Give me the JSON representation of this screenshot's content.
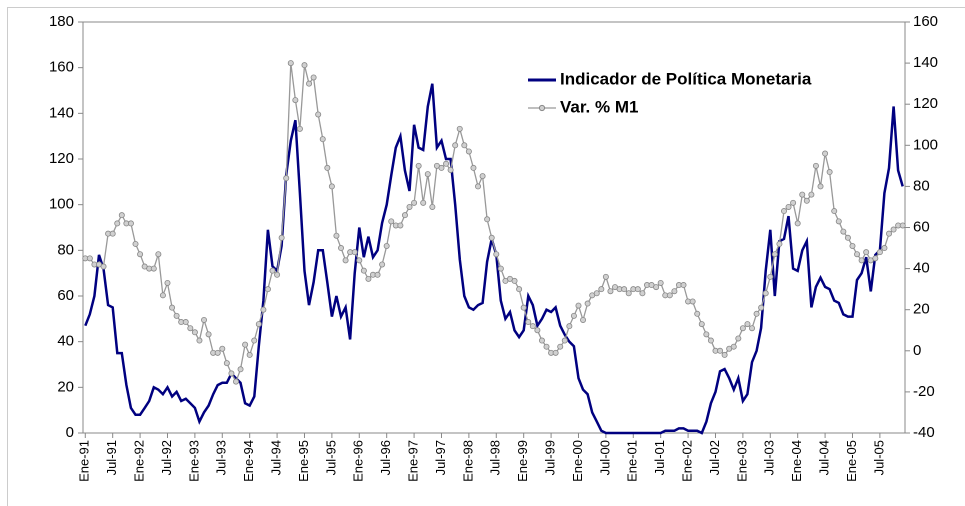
{
  "chart_data": {
    "type": "line",
    "categories": [
      "Ene-91",
      null,
      null,
      null,
      null,
      null,
      "Jul-91",
      null,
      null,
      null,
      null,
      null,
      "Ene-92",
      null,
      null,
      null,
      null,
      null,
      "Jul-92",
      null,
      null,
      null,
      null,
      null,
      "Ene-93",
      null,
      null,
      null,
      null,
      null,
      "Jul-93",
      null,
      null,
      null,
      null,
      null,
      "Ene-94",
      null,
      null,
      null,
      null,
      null,
      "Jul-94",
      null,
      null,
      null,
      null,
      null,
      "Ene-95",
      null,
      null,
      null,
      null,
      null,
      "Jul-95",
      null,
      null,
      null,
      null,
      null,
      "Ene-96",
      null,
      null,
      null,
      null,
      null,
      "Jul-96",
      null,
      null,
      null,
      null,
      null,
      "Ene-97",
      null,
      null,
      null,
      null,
      null,
      "Jul-97",
      null,
      null,
      null,
      null,
      null,
      "Ene-98",
      null,
      null,
      null,
      null,
      null,
      "Jul-98",
      null,
      null,
      null,
      null,
      null,
      "Ene-99",
      null,
      null,
      null,
      null,
      null,
      "Jul-99",
      null,
      null,
      null,
      null,
      null,
      "Ene-00",
      null,
      null,
      null,
      null,
      null,
      "Jul-00",
      null,
      null,
      null,
      null,
      null,
      "Ene-01",
      null,
      null,
      null,
      null,
      null,
      "Jul-01",
      null,
      null,
      null,
      null,
      null,
      "Ene-02",
      null,
      null,
      null,
      null,
      null,
      "Jul-02",
      null,
      null,
      null,
      null,
      null,
      "Ene-03",
      null,
      null,
      null,
      null,
      null,
      "Jul-03",
      null,
      null,
      null,
      null,
      null,
      "Ene-04",
      null,
      null,
      null,
      null,
      null,
      "Jul-04",
      null,
      null,
      null,
      null,
      null,
      "Ene-05",
      null,
      null,
      null,
      null,
      null,
      "Jul-05",
      null,
      null,
      null,
      null,
      null
    ],
    "series": [
      {
        "name": "Indicador de Política Monetaria",
        "color": "#000080",
        "axis": "y",
        "values": [
          47,
          52,
          60,
          78,
          72,
          56,
          55,
          35,
          35,
          21,
          11,
          8,
          8,
          11,
          14,
          20,
          19,
          17,
          20,
          16,
          18,
          14,
          15,
          13,
          11,
          5,
          9,
          12,
          17,
          21,
          22,
          22,
          26,
          24,
          22,
          13,
          12,
          16,
          38,
          58,
          89,
          73,
          71,
          82,
          113,
          128,
          137,
          105,
          71,
          56,
          66,
          80,
          80,
          66,
          51,
          60,
          51,
          55,
          41,
          70,
          90,
          77,
          86,
          77,
          80,
          92,
          100,
          113,
          125,
          130,
          115,
          106,
          135,
          125,
          124,
          143,
          153,
          125,
          128,
          120,
          120,
          100,
          76,
          60,
          55,
          54,
          56,
          57,
          75,
          85,
          78,
          58,
          50,
          53,
          45,
          42,
          45,
          60,
          56,
          47,
          50,
          54,
          53,
          55,
          47,
          43,
          40,
          38,
          24,
          19,
          17,
          9,
          5,
          1,
          0,
          0,
          0,
          0,
          0,
          0,
          0,
          0,
          0,
          0,
          0,
          0,
          0,
          1,
          1,
          1,
          2,
          2,
          1,
          1,
          1,
          0,
          5,
          13,
          18,
          27,
          28,
          24,
          19,
          24,
          14,
          17,
          31,
          36,
          46,
          71,
          89,
          60,
          84,
          85,
          95,
          72,
          71,
          80,
          84,
          55,
          64,
          68,
          64,
          63,
          58,
          57,
          52,
          51,
          51,
          67,
          70,
          77,
          62,
          78,
          80,
          105,
          116,
          143,
          115,
          108
        ]
      },
      {
        "name": "Var. % M1",
        "color": "#999999",
        "axis": "y2",
        "values": [
          45,
          45,
          42,
          42,
          41,
          57,
          57,
          62,
          66,
          62,
          62,
          52,
          47,
          41,
          40,
          40,
          47,
          27,
          33,
          21,
          17,
          14,
          14,
          11,
          9,
          5,
          15,
          8,
          -1,
          -1,
          1,
          -6,
          -11,
          -15,
          -9,
          3,
          -2,
          5,
          13,
          20,
          30,
          39,
          37,
          55,
          84,
          140,
          122,
          108,
          139,
          130,
          133,
          115,
          103,
          89,
          80,
          56,
          50,
          44,
          48,
          48,
          44,
          39,
          35,
          37,
          37,
          42,
          51,
          63,
          61,
          61,
          66,
          70,
          72,
          90,
          72,
          86,
          70,
          90,
          89,
          91,
          88,
          100,
          108,
          100,
          97,
          89,
          80,
          85,
          64,
          55,
          47,
          40,
          34,
          35,
          34,
          30,
          21,
          14,
          12,
          10,
          5,
          2,
          -1,
          -1,
          2,
          5,
          12,
          17,
          22,
          15,
          23,
          27,
          28,
          30,
          36,
          29,
          31,
          30,
          30,
          28,
          30,
          30,
          28,
          32,
          32,
          31,
          33,
          27,
          27,
          29,
          32,
          32,
          24,
          24,
          18,
          13,
          8,
          5,
          0,
          0,
          -2,
          1,
          2,
          6,
          11,
          13,
          11,
          18,
          21,
          28,
          36,
          47,
          52,
          68,
          70,
          72,
          62,
          76,
          73,
          76,
          90,
          80,
          96,
          87,
          68,
          63,
          58,
          55,
          51,
          47,
          44,
          48,
          44,
          45,
          48,
          50,
          57,
          59,
          61,
          61
        ]
      }
    ],
    "ylim": [
      0,
      180
    ],
    "yticks": [
      0,
      20,
      40,
      60,
      80,
      100,
      120,
      140,
      160,
      180
    ],
    "y2lim": [
      -40,
      160
    ],
    "y2ticks": [
      -40,
      -20,
      0,
      20,
      40,
      60,
      80,
      100,
      120,
      140,
      160
    ],
    "legend": "upper right"
  }
}
